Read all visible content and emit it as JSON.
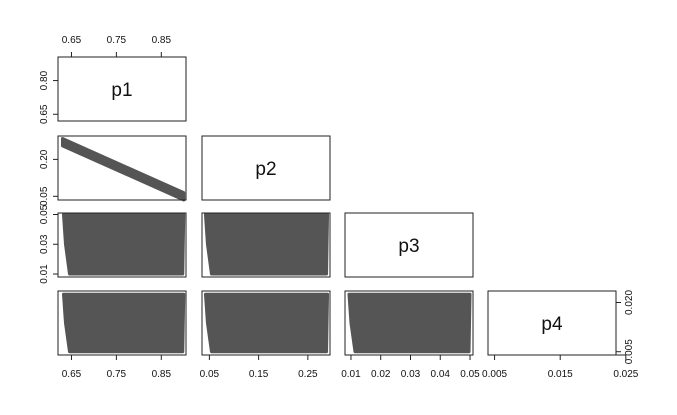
{
  "chart_data": {
    "type": "scatter",
    "variables": [
      "p1",
      "p2",
      "p3",
      "p4"
    ],
    "layout": "lower-triangle pairs plot, variable names on diagonal",
    "colors": {
      "points": "#555555",
      "frame": "#222222",
      "background": "#ffffff"
    },
    "axes": {
      "p1": {
        "range": [
          0.62,
          0.905
        ],
        "ticks": [
          0.65,
          0.75,
          0.85
        ],
        "tick_labels": [
          "0.65",
          "0.75",
          "0.85"
        ],
        "diag_ticks": [
          0.65,
          0.8
        ],
        "diag_tick_labels": [
          "0.65",
          "0.80"
        ]
      },
      "p2": {
        "range": [
          0.035,
          0.295
        ],
        "ticks": [
          0.05,
          0.15,
          0.25
        ],
        "tick_labels": [
          "0.05",
          "0.15",
          "0.25"
        ],
        "row_ticks": [
          0.05,
          0.2
        ],
        "row_tick_labels": [
          "0.05",
          "0.20"
        ]
      },
      "p3": {
        "range": [
          0.008,
          0.051
        ],
        "ticks": [
          0.01,
          0.02,
          0.03,
          0.04,
          0.05
        ],
        "tick_labels": [
          "0.01",
          "0.02",
          "0.03",
          "0.04",
          "0.05"
        ],
        "row_ticks": [
          0.01,
          0.03,
          0.05
        ],
        "row_tick_labels": [
          "0.01",
          "0.03",
          "0.05"
        ]
      },
      "p4": {
        "range": [
          0.004,
          0.0235
        ],
        "ticks": [
          0.005,
          0.015,
          0.025
        ],
        "tick_labels": [
          "0.005",
          "0.015",
          "0.025"
        ],
        "row_ticks": [
          0.005,
          0.02
        ],
        "row_tick_labels": [
          "0.005",
          "0.020"
        ]
      }
    },
    "panels": [
      {
        "x": "p1",
        "y": "p2",
        "description": "negative linear band",
        "band": {
          "x_start": 0.63,
          "x_end": 0.9,
          "y_start": 0.27,
          "y_end": 0.05,
          "half_width": 0.015
        }
      },
      {
        "x": "p1",
        "y": "p3",
        "description": "dense fill",
        "fill": {
          "x_range": [
            0.63,
            0.9
          ],
          "y_range": [
            0.01,
            0.05
          ]
        }
      },
      {
        "x": "p2",
        "y": "p3",
        "description": "dense fill",
        "fill": {
          "x_range": [
            0.04,
            0.29
          ],
          "y_range": [
            0.01,
            0.05
          ]
        }
      },
      {
        "x": "p1",
        "y": "p4",
        "description": "dense fill",
        "fill": {
          "x_range": [
            0.63,
            0.9
          ],
          "y_range": [
            0.005,
            0.0225
          ]
        }
      },
      {
        "x": "p2",
        "y": "p4",
        "description": "dense fill",
        "fill": {
          "x_range": [
            0.04,
            0.29
          ],
          "y_range": [
            0.005,
            0.0225
          ]
        }
      },
      {
        "x": "p3",
        "y": "p4",
        "description": "dense fill",
        "fill": {
          "x_range": [
            0.009,
            0.05
          ],
          "y_range": [
            0.005,
            0.0225
          ]
        }
      }
    ]
  }
}
